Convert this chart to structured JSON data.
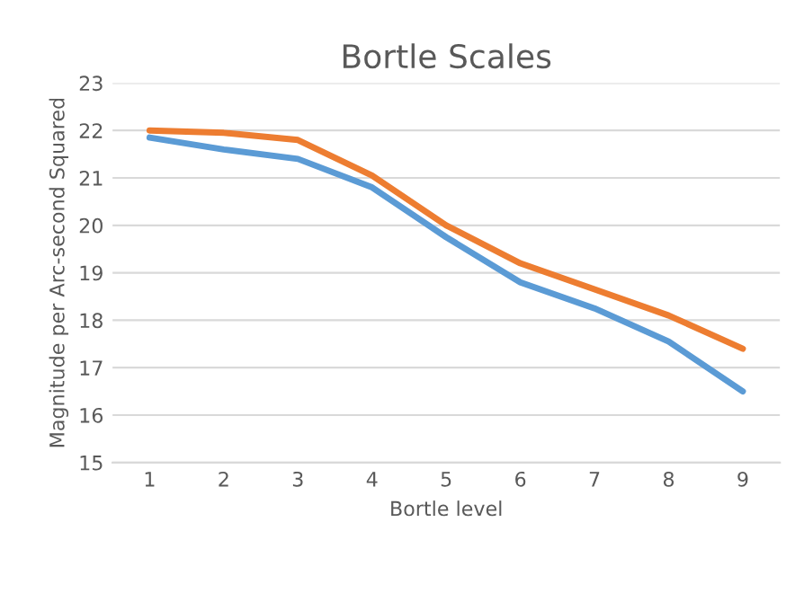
{
  "chart_data": {
    "type": "line",
    "title": "Bortle Scales",
    "xlabel": "Bortle level",
    "ylabel": "Magnitude per Arc-second Squared",
    "categories": [
      "1",
      "2",
      "3",
      "4",
      "5",
      "6",
      "7",
      "8",
      "9"
    ],
    "series": [
      {
        "color": "#5b9bd5",
        "values": [
          21.85,
          21.6,
          21.4,
          20.8,
          19.75,
          18.8,
          18.25,
          17.55,
          16.5
        ]
      },
      {
        "color": "#ed7d31",
        "values": [
          22.0,
          21.95,
          21.8,
          21.05,
          20.0,
          19.2,
          18.65,
          18.1,
          17.4
        ]
      }
    ],
    "ylim": [
      15,
      23
    ],
    "yticks": [
      15,
      16,
      17,
      18,
      19,
      20,
      21,
      22,
      23
    ],
    "grid": "y"
  }
}
